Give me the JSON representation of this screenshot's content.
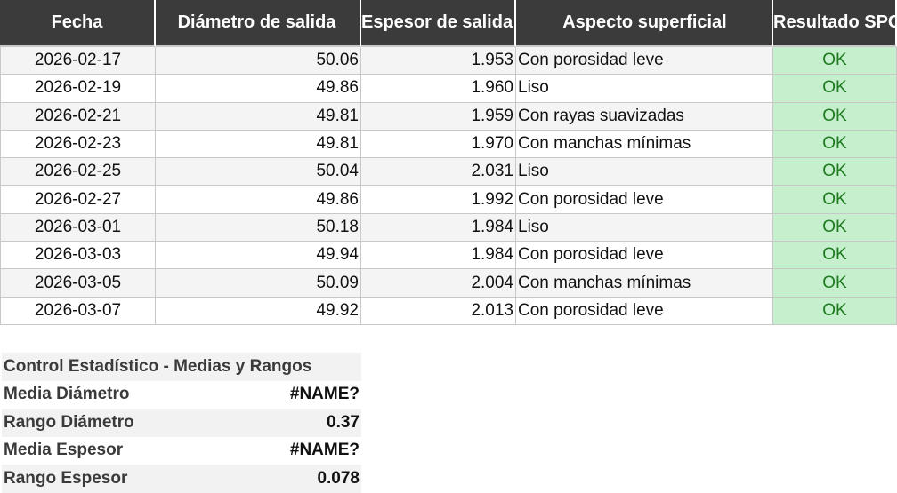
{
  "table": {
    "headers": {
      "date": "Fecha",
      "diameter": "Diámetro de salida",
      "thickness": "Espesor de salida",
      "surface": "Aspecto superficial",
      "result": "Resultado SPC"
    },
    "rows": [
      {
        "date": "2026-02-17",
        "diameter": "50.06",
        "thickness": "1.953",
        "surface": "Con porosidad leve",
        "result": "OK"
      },
      {
        "date": "2026-02-19",
        "diameter": "49.86",
        "thickness": "1.960",
        "surface": "Liso",
        "result": "OK"
      },
      {
        "date": "2026-02-21",
        "diameter": "49.81",
        "thickness": "1.959",
        "surface": "Con rayas suavizadas",
        "result": "OK"
      },
      {
        "date": "2026-02-23",
        "diameter": "49.81",
        "thickness": "1.970",
        "surface": "Con manchas mínimas",
        "result": "OK"
      },
      {
        "date": "2026-02-25",
        "diameter": "50.04",
        "thickness": "2.031",
        "surface": "Liso",
        "result": "OK"
      },
      {
        "date": "2026-02-27",
        "diameter": "49.86",
        "thickness": "1.992",
        "surface": "Con porosidad leve",
        "result": "OK"
      },
      {
        "date": "2026-03-01",
        "diameter": "50.18",
        "thickness": "1.984",
        "surface": "Liso",
        "result": "OK"
      },
      {
        "date": "2026-03-03",
        "diameter": "49.94",
        "thickness": "1.984",
        "surface": "Con porosidad leve",
        "result": "OK"
      },
      {
        "date": "2026-03-05",
        "diameter": "50.09",
        "thickness": "2.004",
        "surface": "Con manchas mínimas",
        "result": "OK"
      },
      {
        "date": "2026-03-07",
        "diameter": "49.92",
        "thickness": "2.013",
        "surface": "Con porosidad leve",
        "result": "OK"
      }
    ]
  },
  "summary": {
    "title": "Control Estadístico - Medias y Rangos",
    "items": [
      {
        "label": "Media Diámetro",
        "value": "#NAME?"
      },
      {
        "label": "Rango Diámetro",
        "value": "0.37"
      },
      {
        "label": "Media Espesor",
        "value": "#NAME?"
      },
      {
        "label": "Rango Espesor",
        "value": "0.078"
      }
    ]
  },
  "colors": {
    "header_bg": "#3b3b3b",
    "ok_fill": "#c6efce",
    "ok_text": "#1e7a1e"
  }
}
